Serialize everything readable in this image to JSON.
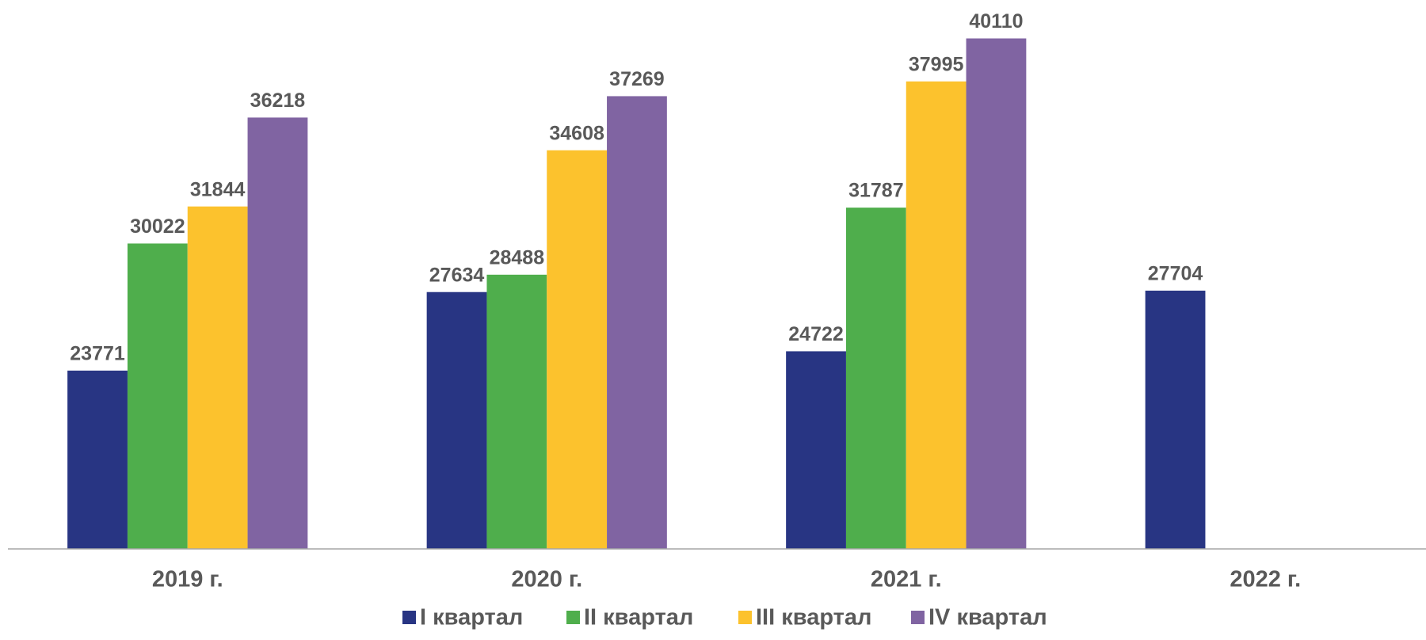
{
  "chart_data": {
    "type": "bar",
    "categories": [
      "2019 г.",
      "2020 г.",
      "2021 г.",
      "2022 г."
    ],
    "series": [
      {
        "name": "I квартал",
        "color": "#283583",
        "values": [
          23771,
          27634,
          24722,
          27704
        ]
      },
      {
        "name": "II квартал",
        "color": "#4fae4c",
        "values": [
          30022,
          28488,
          31787,
          null
        ]
      },
      {
        "name": "III квартал",
        "color": "#fcc22d",
        "values": [
          31844,
          34608,
          37995,
          null
        ]
      },
      {
        "name": "IV квартал",
        "color": "#8064a2",
        "values": [
          36218,
          37269,
          40110,
          null
        ]
      }
    ],
    "ylim": [
      15000,
      42000
    ],
    "legend": "bottom"
  }
}
